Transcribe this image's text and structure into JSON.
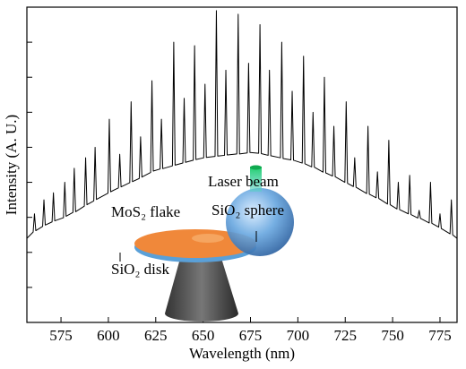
{
  "chart_data": {
    "type": "line",
    "xlabel": "Wavelength (nm)",
    "ylabel": "Intensity (A. U.)",
    "xlim": [
      557,
      784
    ],
    "ylim": [
      0,
      9
    ],
    "xticks": [
      575,
      600,
      625,
      650,
      675,
      700,
      725,
      750,
      775
    ],
    "yticks": [
      1,
      2,
      3,
      4,
      5,
      6,
      7,
      8
    ],
    "color": "#000000",
    "x": [
      557,
      560.3,
      561,
      561.7,
      565.3,
      566,
      566.7,
      570.3,
      571,
      571.7,
      576.3,
      577,
      577.7,
      581.3,
      582,
      582.7,
      587.3,
      588,
      588.7,
      592.3,
      593,
      593.7,
      599.8,
      600.5,
      601.2,
      605.3,
      606,
      606.7,
      611.3,
      612,
      612.7,
      616.3,
      617,
      617.7,
      622.3,
      623,
      623.7,
      627.3,
      628,
      628.7,
      633.8,
      634.5,
      635.2,
      639.3,
      640,
      640.7,
      644.8,
      645.5,
      646.2,
      650.3,
      651,
      651.7,
      656.3,
      657,
      657.7,
      661.3,
      662,
      662.7,
      667.8,
      668.5,
      669.2,
      673.3,
      674,
      674.7,
      679.3,
      680,
      680.7,
      684.3,
      685,
      685.7,
      690.8,
      691.5,
      692.2,
      696.3,
      697,
      697.7,
      702.3,
      703,
      703.7,
      707.3,
      708,
      708.7,
      713.3,
      714,
      714.7,
      718.3,
      719,
      719.7,
      724.8,
      725.5,
      726.2,
      729.3,
      730,
      730.7,
      736.3,
      737,
      737.7,
      741.3,
      742,
      742.7,
      747.3,
      748,
      748.7,
      752.3,
      753,
      753.7,
      758.3,
      759,
      759.7,
      763.3,
      764,
      764.7,
      769.3,
      770,
      770.7,
      774.3,
      775,
      775.7,
      780.3,
      781,
      781.7,
      784
    ],
    "values": [
      2.4,
      2.58,
      3.1,
      2.62,
      2.74,
      3.5,
      2.78,
      2.87,
      3.7,
      2.9,
      2.99,
      4.0,
      3.03,
      3.14,
      4.4,
      3.16,
      3.32,
      4.7,
      3.36,
      3.47,
      5.0,
      3.51,
      3.69,
      5.8,
      3.73,
      3.84,
      4.8,
      3.87,
      3.99,
      6.3,
      4.02,
      4.11,
      5.3,
      4.15,
      4.28,
      6.9,
      4.32,
      4.38,
      5.8,
      4.39,
      4.47,
      8.0,
      4.49,
      4.55,
      6.4,
      4.57,
      4.63,
      7.9,
      4.65,
      4.7,
      6.8,
      4.71,
      4.74,
      8.9,
      4.75,
      4.77,
      7.2,
      4.78,
      4.81,
      8.8,
      4.81,
      4.84,
      7.4,
      4.85,
      4.83,
      8.5,
      4.82,
      4.77,
      7.2,
      4.76,
      4.7,
      8.0,
      4.68,
      4.64,
      6.6,
      4.63,
      4.55,
      7.6,
      4.53,
      4.44,
      6.0,
      4.43,
      4.29,
      7.0,
      4.27,
      4.18,
      5.6,
      4.16,
      4.0,
      6.3,
      3.97,
      3.88,
      4.7,
      3.86,
      3.68,
      5.6,
      3.66,
      3.56,
      4.3,
      3.54,
      3.38,
      5.2,
      3.36,
      3.24,
      4.0,
      3.22,
      3.1,
      4.2,
      3.08,
      2.98,
      3.2,
      2.97,
      2.84,
      4.0,
      2.83,
      2.72,
      3.1,
      2.68,
      2.53,
      3.5,
      2.5,
      2.4
    ],
    "annotations": [
      "Laser beam",
      "SiO₂ sphere",
      "MoS₂ flake",
      "SiO₂ disk"
    ]
  }
}
